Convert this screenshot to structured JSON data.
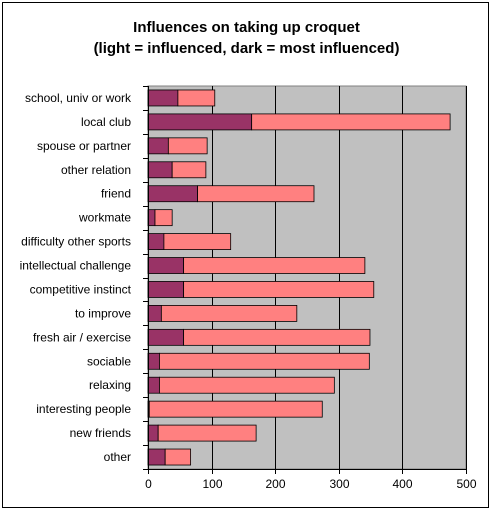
{
  "chart_data": {
    "type": "bar",
    "orientation": "horizontal",
    "stacked": true,
    "title": "Influences on taking up croquet",
    "subtitle": "(light = influenced, dark = most influenced)",
    "xlim": [
      0,
      500
    ],
    "xticks": [
      0,
      100,
      200,
      300,
      400,
      500
    ],
    "grid": true,
    "categories": [
      "school, univ or work",
      "local club",
      "spouse or partner",
      "other relation",
      "friend",
      "workmate",
      "difficulty other sports",
      "intellectual challenge",
      "competitive instinct",
      "to improve",
      "fresh air / exercise",
      "sociable",
      "relaxing",
      "interesting people",
      "new friends",
      "other"
    ],
    "series": [
      {
        "values": [
          47,
          163,
          32,
          38,
          78,
          11,
          25,
          56,
          56,
          21,
          56,
          18,
          18,
          2,
          16,
          27
        ],
        "color": "#993366"
      },
      {
        "values": [
          58,
          312,
          61,
          53,
          183,
          27,
          105,
          285,
          299,
          213,
          293,
          330,
          275,
          272,
          154,
          40
        ],
        "color": "#FF8080"
      }
    ],
    "plot_background": "#C0C0C0"
  }
}
